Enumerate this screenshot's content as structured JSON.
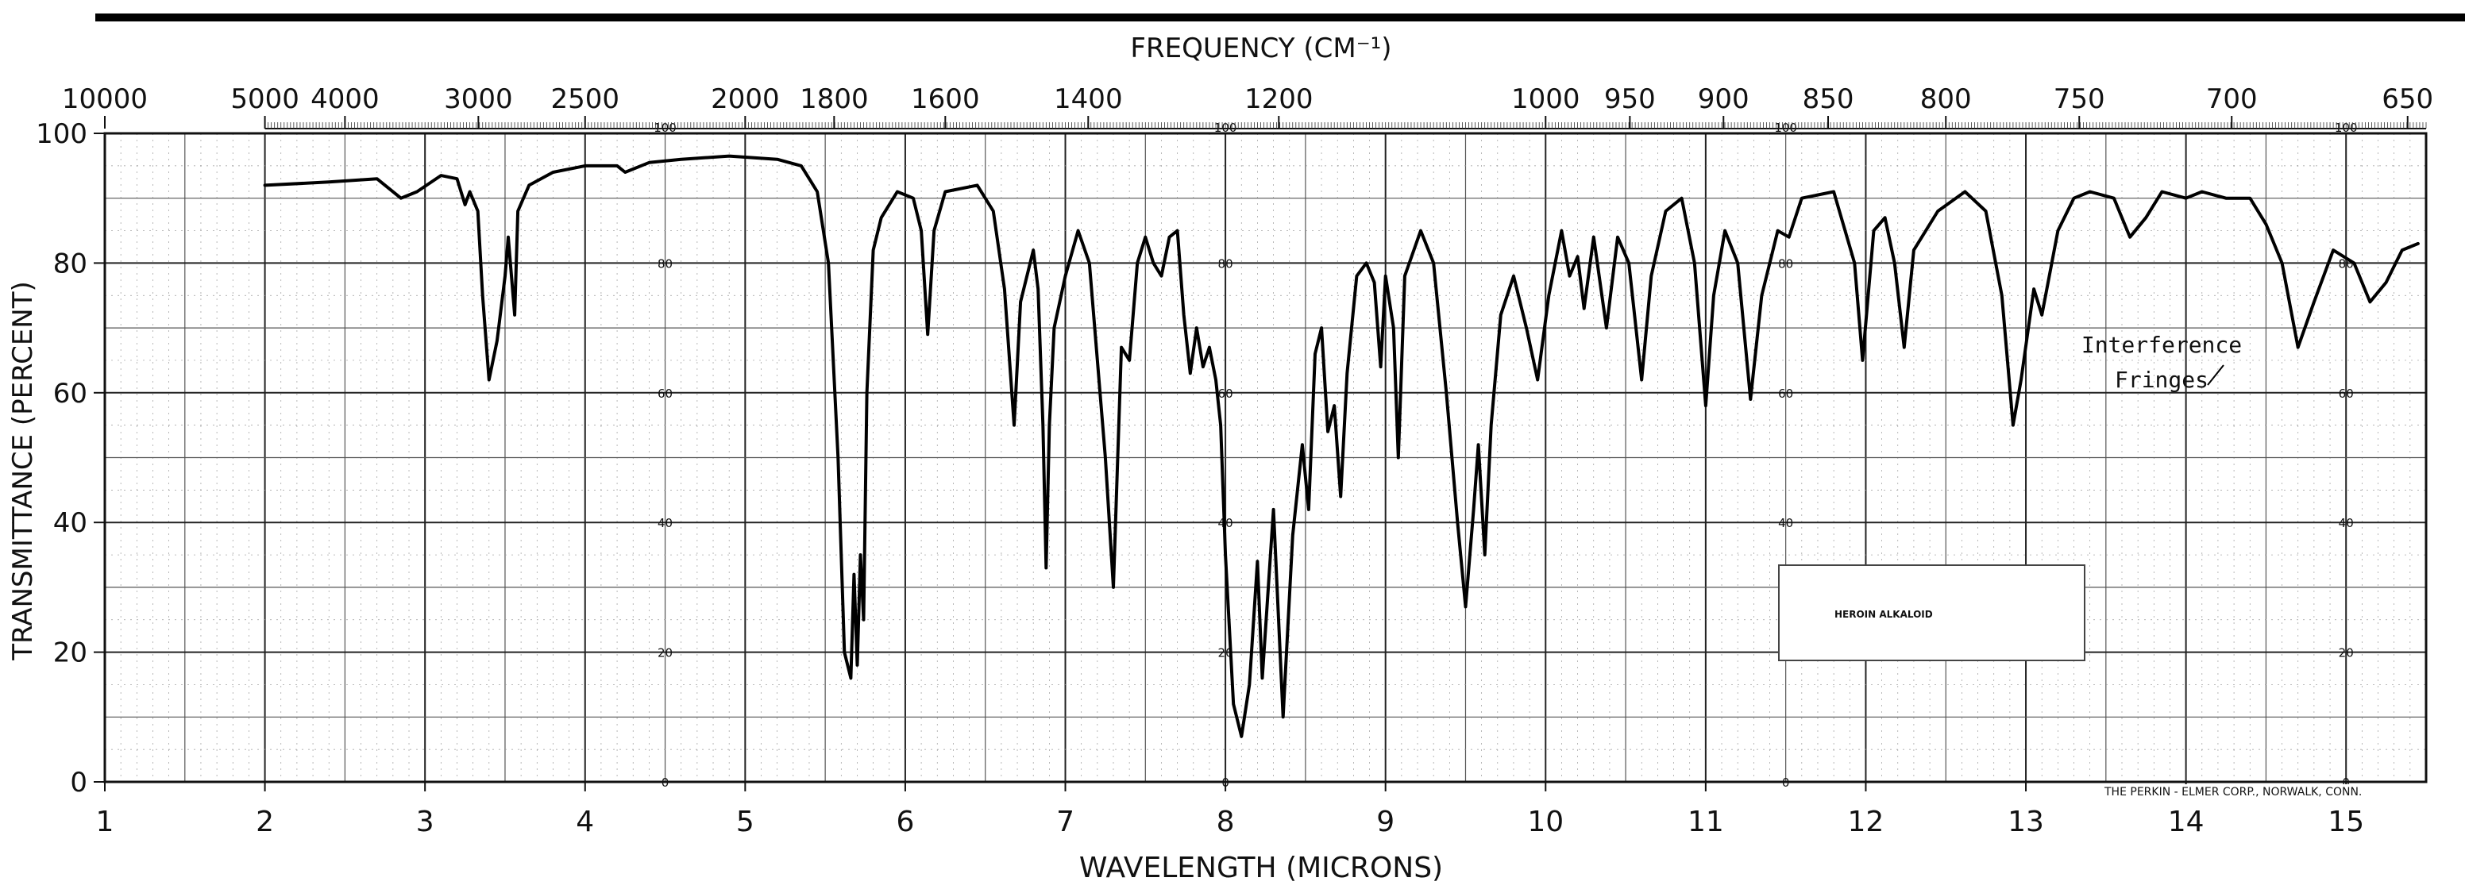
{
  "chart_data": {
    "type": "line",
    "title": "",
    "top_axis_label": "FREQUENCY (CM⁻¹)",
    "xlabel": "WAVELENGTH (MICRONS)",
    "ylabel": "TRANSMITTANCE (PERCENT)",
    "xlim": [
      1.0,
      15.5
    ],
    "ylim": [
      0,
      100
    ],
    "grid": true,
    "x_ticks": [
      1,
      2,
      3,
      4,
      5,
      6,
      7,
      8,
      9,
      10,
      11,
      12,
      13,
      14,
      15
    ],
    "x_tick_labels": [
      "1",
      "2",
      "3",
      "4",
      "5",
      "6",
      "7",
      "8",
      "9",
      "10",
      "11",
      "12",
      "13",
      "14",
      "15"
    ],
    "y_ticks": [
      0,
      20,
      40,
      60,
      80,
      100
    ],
    "y_tick_labels": [
      "0",
      "20",
      "40",
      "60",
      "80",
      "100"
    ],
    "freq_ticks": [
      {
        "label": "10000",
        "wavenumber": 10000
      },
      {
        "label": "5000",
        "wavenumber": 5000
      },
      {
        "label": "4000",
        "wavenumber": 4000
      },
      {
        "label": "3000",
        "wavenumber": 3000
      },
      {
        "label": "2500",
        "wavenumber": 2500
      },
      {
        "label": "2000",
        "wavenumber": 2000
      },
      {
        "label": "1800",
        "wavenumber": 1800
      },
      {
        "label": "1600",
        "wavenumber": 1600
      },
      {
        "label": "1400",
        "wavenumber": 1400
      },
      {
        "label": "1200",
        "wavenumber": 1200
      },
      {
        "label": "1000",
        "wavenumber": 1000
      },
      {
        "label": "950",
        "wavenumber": 950
      },
      {
        "label": "900",
        "wavenumber": 900
      },
      {
        "label": "850",
        "wavenumber": 850
      },
      {
        "label": "800",
        "wavenumber": 800
      },
      {
        "label": "750",
        "wavenumber": 750
      },
      {
        "label": "700",
        "wavenumber": 700
      },
      {
        "label": "650",
        "wavenumber": 650
      }
    ],
    "secondary_scale_columns": [
      4.5,
      8.0,
      11.5,
      15.0
    ],
    "secondary_scale_labels": [
      "100",
      "80",
      "60",
      "40",
      "20",
      "0"
    ],
    "annotation": {
      "text_line1": "Interference",
      "text_line2": "Fringes",
      "x": 14.4,
      "y": 66
    },
    "sample_label": "HEROIN ALKALOID",
    "footer_text": "THE PERKIN - ELMER CORP., NORWALK, CONN.",
    "series": [
      {
        "points": [
          [
            2.0,
            92
          ],
          [
            2.4,
            92.5
          ],
          [
            2.7,
            93
          ],
          [
            2.85,
            90
          ],
          [
            2.95,
            91
          ],
          [
            3.1,
            93.5
          ],
          [
            3.2,
            93
          ],
          [
            3.25,
            89
          ],
          [
            3.28,
            91
          ],
          [
            3.33,
            88
          ],
          [
            3.36,
            75
          ],
          [
            3.4,
            62
          ],
          [
            3.45,
            68
          ],
          [
            3.5,
            78
          ],
          [
            3.52,
            84
          ],
          [
            3.56,
            72
          ],
          [
            3.58,
            88
          ],
          [
            3.65,
            92
          ],
          [
            3.8,
            94
          ],
          [
            4.0,
            95
          ],
          [
            4.2,
            95
          ],
          [
            4.25,
            94
          ],
          [
            4.4,
            95.5
          ],
          [
            4.6,
            96
          ],
          [
            4.9,
            96.5
          ],
          [
            5.2,
            96
          ],
          [
            5.35,
            95
          ],
          [
            5.45,
            91
          ],
          [
            5.52,
            80
          ],
          [
            5.58,
            50
          ],
          [
            5.62,
            20
          ],
          [
            5.66,
            16
          ],
          [
            5.68,
            32
          ],
          [
            5.7,
            18
          ],
          [
            5.72,
            35
          ],
          [
            5.74,
            25
          ],
          [
            5.76,
            60
          ],
          [
            5.8,
            82
          ],
          [
            5.85,
            87
          ],
          [
            5.95,
            91
          ],
          [
            6.05,
            90
          ],
          [
            6.1,
            85
          ],
          [
            6.14,
            69
          ],
          [
            6.18,
            85
          ],
          [
            6.25,
            91
          ],
          [
            6.45,
            92
          ],
          [
            6.55,
            88
          ],
          [
            6.62,
            76
          ],
          [
            6.68,
            55
          ],
          [
            6.72,
            74
          ],
          [
            6.8,
            82
          ],
          [
            6.83,
            76
          ],
          [
            6.86,
            55
          ],
          [
            6.88,
            33
          ],
          [
            6.9,
            55
          ],
          [
            6.93,
            70
          ],
          [
            7.0,
            78
          ],
          [
            7.08,
            85
          ],
          [
            7.15,
            80
          ],
          [
            7.25,
            50
          ],
          [
            7.3,
            30
          ],
          [
            7.35,
            67
          ],
          [
            7.4,
            65
          ],
          [
            7.45,
            80
          ],
          [
            7.5,
            84
          ],
          [
            7.55,
            80
          ],
          [
            7.6,
            78
          ],
          [
            7.65,
            84
          ],
          [
            7.7,
            85
          ],
          [
            7.74,
            72
          ],
          [
            7.78,
            63
          ],
          [
            7.82,
            70
          ],
          [
            7.86,
            64
          ],
          [
            7.9,
            67
          ],
          [
            7.94,
            62
          ],
          [
            7.97,
            55
          ],
          [
            8.0,
            35
          ],
          [
            8.05,
            12
          ],
          [
            8.1,
            7
          ],
          [
            8.15,
            15
          ],
          [
            8.2,
            34
          ],
          [
            8.23,
            16
          ],
          [
            8.3,
            42
          ],
          [
            8.36,
            10
          ],
          [
            8.42,
            38
          ],
          [
            8.48,
            52
          ],
          [
            8.52,
            42
          ],
          [
            8.56,
            66
          ],
          [
            8.6,
            70
          ],
          [
            8.64,
            54
          ],
          [
            8.68,
            58
          ],
          [
            8.72,
            44
          ],
          [
            8.76,
            63
          ],
          [
            8.82,
            78
          ],
          [
            8.88,
            80
          ],
          [
            8.93,
            77
          ],
          [
            8.97,
            64
          ],
          [
            9.0,
            78
          ],
          [
            9.05,
            70
          ],
          [
            9.08,
            50
          ],
          [
            9.12,
            78
          ],
          [
            9.22,
            85
          ],
          [
            9.3,
            80
          ],
          [
            9.38,
            60
          ],
          [
            9.45,
            40
          ],
          [
            9.5,
            27
          ],
          [
            9.55,
            42
          ],
          [
            9.58,
            52
          ],
          [
            9.62,
            35
          ],
          [
            9.66,
            55
          ],
          [
            9.72,
            72
          ],
          [
            9.8,
            78
          ],
          [
            9.88,
            70
          ],
          [
            9.95,
            62
          ],
          [
            10.02,
            75
          ],
          [
            10.1,
            85
          ],
          [
            10.15,
            78
          ],
          [
            10.2,
            81
          ],
          [
            10.24,
            73
          ],
          [
            10.3,
            84
          ],
          [
            10.38,
            70
          ],
          [
            10.45,
            84
          ],
          [
            10.52,
            80
          ],
          [
            10.6,
            62
          ],
          [
            10.66,
            78
          ],
          [
            10.75,
            88
          ],
          [
            10.85,
            90
          ],
          [
            10.93,
            80
          ],
          [
            11.0,
            58
          ],
          [
            11.05,
            75
          ],
          [
            11.12,
            85
          ],
          [
            11.2,
            80
          ],
          [
            11.28,
            59
          ],
          [
            11.35,
            75
          ],
          [
            11.45,
            85
          ],
          [
            11.52,
            84
          ],
          [
            11.6,
            90
          ],
          [
            11.8,
            91
          ],
          [
            11.93,
            80
          ],
          [
            11.98,
            65
          ],
          [
            12.05,
            85
          ],
          [
            12.12,
            87
          ],
          [
            12.18,
            80
          ],
          [
            12.24,
            67
          ],
          [
            12.3,
            82
          ],
          [
            12.45,
            88
          ],
          [
            12.62,
            91
          ],
          [
            12.75,
            88
          ],
          [
            12.85,
            75
          ],
          [
            12.92,
            55
          ],
          [
            12.97,
            62
          ],
          [
            13.05,
            76
          ],
          [
            13.1,
            72
          ],
          [
            13.2,
            85
          ],
          [
            13.3,
            90
          ],
          [
            13.4,
            91
          ],
          [
            13.55,
            90
          ],
          [
            13.65,
            84
          ],
          [
            13.75,
            87
          ],
          [
            13.85,
            91
          ],
          [
            14.0,
            90
          ],
          [
            14.1,
            91
          ],
          [
            14.25,
            90
          ],
          [
            14.4,
            90
          ],
          [
            14.5,
            86
          ],
          [
            14.6,
            80
          ],
          [
            14.7,
            67
          ],
          [
            14.8,
            74
          ],
          [
            14.92,
            82
          ],
          [
            15.05,
            80
          ],
          [
            15.15,
            74
          ],
          [
            15.25,
            77
          ],
          [
            15.35,
            82
          ],
          [
            15.45,
            83
          ]
        ]
      }
    ]
  }
}
